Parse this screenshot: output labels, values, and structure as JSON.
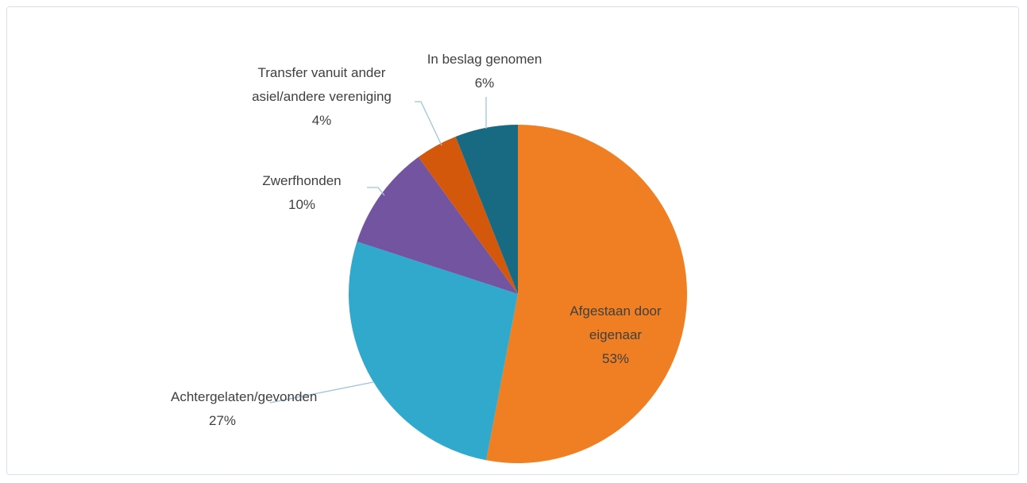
{
  "chart_data": {
    "type": "pie",
    "categories": [
      "Afgestaan door eigenaar",
      "Achtergelaten/gevonden",
      "Zwerfhonden",
      "Transfer vanuit ander asiel/andere vereniging",
      "In beslag genomen"
    ],
    "values": [
      53,
      27,
      10,
      4,
      6
    ],
    "value_labels": [
      "53%",
      "27%",
      "10%",
      "4%",
      "6%"
    ],
    "colors": [
      "#ef7f22",
      "#31a9cc",
      "#7254a0",
      "#d4580c",
      "#186a82"
    ]
  }
}
